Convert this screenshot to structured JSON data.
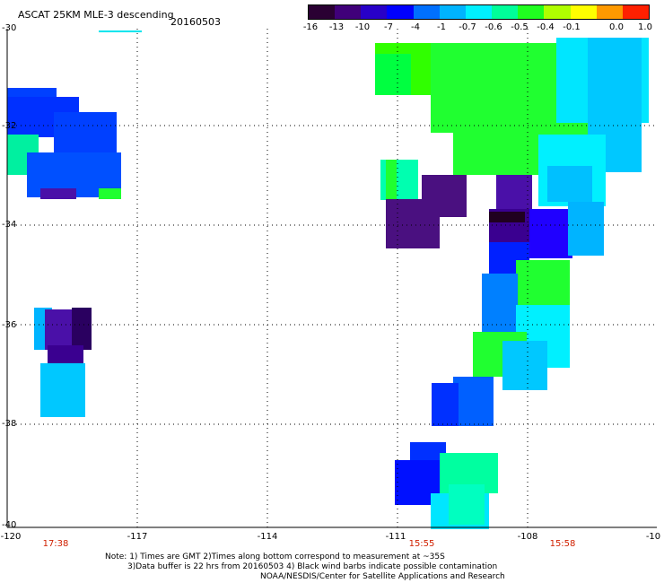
{
  "header": {
    "title": "ASCAT 25KM MLE-3 descending",
    "date": "20160503"
  },
  "colorbar": {
    "labels": [
      "-16",
      "-13",
      "-10",
      "-7",
      "-4",
      "-1",
      "-0.7",
      "-0.6",
      "-0.5",
      "-0.4",
      "-0.1",
      "0.0",
      "1.0"
    ],
    "colors": [
      "#2a0033",
      "#40007a",
      "#2800c8",
      "#0000ff",
      "#0070ff",
      "#00b4ff",
      "#00f0ff",
      "#00ff9a",
      "#20ff20",
      "#b0ff00",
      "#ffff00",
      "#ff9900",
      "#ff2000"
    ]
  },
  "axes": {
    "lat_labels": [
      "-30",
      "-32",
      "-34",
      "-36",
      "-38",
      "-40"
    ],
    "lon_labels": [
      "-120",
      "-117",
      "-114",
      "-111",
      "-108",
      "-10"
    ],
    "time_labels": [
      "17:38",
      "15:55",
      "15:58"
    ]
  },
  "notes": {
    "line1": "Note: 1) Times are GMT 2)Times along bottom correspond to measurement at ~35S",
    "line2": "3)Data buffer is 22 hrs from 20160503 4) Black wind barbs indicate possible contamination",
    "line3": "NOAA/NESDIS/Center for Satellite Applications and Research"
  }
}
